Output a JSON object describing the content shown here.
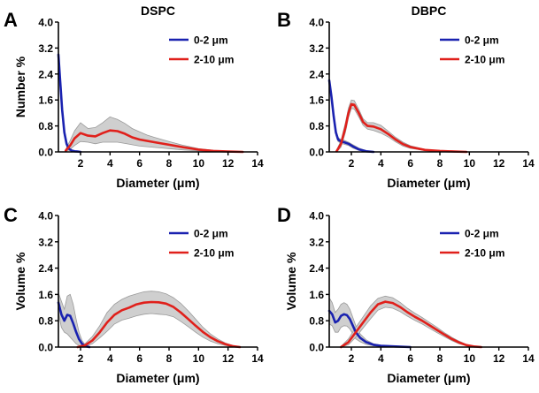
{
  "chart_data": [
    {
      "type": "line",
      "panel_label": "A",
      "title": "DSPC",
      "xlabel": "Diameter (μm)",
      "ylabel": "Number %",
      "xlim": [
        0.5,
        14
      ],
      "ylim": [
        0,
        4.0
      ],
      "xticks": [
        2,
        4,
        6,
        8,
        10,
        12,
        14
      ],
      "yticks": [
        0.0,
        0.8,
        1.6,
        2.4,
        3.2,
        4.0
      ],
      "ytick_labels": [
        "0.0",
        "0.8",
        "1.6",
        "2.4",
        "3.2",
        "4.0"
      ],
      "legend": "top-right",
      "series": [
        {
          "name": "0-2 μm",
          "color": "#1a22b0",
          "x": [
            0.5,
            0.6,
            0.75,
            0.9,
            1.05,
            1.2,
            1.4,
            1.6,
            1.8,
            2.0
          ],
          "y": [
            3.0,
            2.3,
            1.3,
            0.6,
            0.25,
            0.1,
            0.04,
            0.02,
            0.01,
            0.0
          ],
          "upper": [
            3.2,
            2.5,
            1.45,
            0.7,
            0.32,
            0.15,
            0.06,
            0.03,
            0.02,
            0.01
          ],
          "lower": [
            2.8,
            2.1,
            1.15,
            0.5,
            0.18,
            0.05,
            0.02,
            0.01,
            0.0,
            0.0
          ]
        },
        {
          "name": "2-10 μm",
          "color": "#e0201b",
          "x": [
            1.0,
            1.3,
            1.6,
            2.0,
            2.5,
            3.0,
            3.5,
            4.0,
            4.5,
            5.0,
            5.5,
            6.0,
            6.5,
            7.0,
            8.0,
            9.0,
            10.0,
            11.0,
            12.0,
            13.0
          ],
          "y": [
            0.04,
            0.2,
            0.42,
            0.58,
            0.5,
            0.48,
            0.58,
            0.66,
            0.64,
            0.56,
            0.45,
            0.38,
            0.34,
            0.3,
            0.22,
            0.14,
            0.07,
            0.03,
            0.01,
            0.0
          ],
          "upper": [
            0.08,
            0.35,
            0.65,
            0.9,
            0.72,
            0.75,
            0.9,
            1.08,
            1.0,
            0.88,
            0.72,
            0.62,
            0.52,
            0.45,
            0.32,
            0.2,
            0.1,
            0.05,
            0.02,
            0.01
          ],
          "lower": [
            0.01,
            0.08,
            0.2,
            0.32,
            0.3,
            0.25,
            0.3,
            0.3,
            0.3,
            0.26,
            0.22,
            0.18,
            0.16,
            0.14,
            0.1,
            0.06,
            0.03,
            0.01,
            0.0,
            0.0
          ]
        }
      ]
    },
    {
      "type": "line",
      "panel_label": "B",
      "title": "DBPC",
      "xlabel": "Diameter (μm)",
      "ylabel": "",
      "xlim": [
        0.5,
        14
      ],
      "ylim": [
        0,
        4.0
      ],
      "xticks": [
        2,
        4,
        6,
        8,
        10,
        12,
        14
      ],
      "yticks": [
        0.0,
        0.8,
        1.6,
        2.4,
        3.2,
        4.0
      ],
      "ytick_labels": [
        "0.0",
        "0.8",
        "1.6",
        "2.4",
        "3.2",
        "4.0"
      ],
      "legend": "top-right",
      "series": [
        {
          "name": "0-2 μm",
          "color": "#1a22b0",
          "x": [
            0.5,
            0.65,
            0.8,
            0.95,
            1.1,
            1.3,
            1.5,
            1.8,
            2.1,
            2.5,
            3.0,
            3.5
          ],
          "y": [
            2.2,
            1.7,
            1.1,
            0.6,
            0.38,
            0.32,
            0.3,
            0.25,
            0.17,
            0.08,
            0.02,
            0.0
          ],
          "upper": [
            2.3,
            1.8,
            1.2,
            0.68,
            0.44,
            0.38,
            0.36,
            0.3,
            0.22,
            0.12,
            0.04,
            0.01
          ],
          "lower": [
            2.1,
            1.6,
            1.0,
            0.52,
            0.32,
            0.26,
            0.24,
            0.2,
            0.12,
            0.05,
            0.01,
            0.0
          ]
        },
        {
          "name": "2-10 μm",
          "color": "#e0201b",
          "x": [
            1.0,
            1.3,
            1.6,
            1.8,
            2.0,
            2.2,
            2.5,
            2.8,
            3.1,
            3.5,
            4.0,
            4.5,
            5.0,
            5.5,
            6.0,
            7.0,
            8.0,
            9.0,
            9.8
          ],
          "y": [
            0.02,
            0.25,
            0.75,
            1.2,
            1.47,
            1.45,
            1.2,
            0.92,
            0.8,
            0.78,
            0.7,
            0.55,
            0.38,
            0.24,
            0.15,
            0.06,
            0.03,
            0.01,
            0.0
          ],
          "upper": [
            0.05,
            0.35,
            0.9,
            1.35,
            1.6,
            1.58,
            1.32,
            1.02,
            0.9,
            0.9,
            0.82,
            0.64,
            0.45,
            0.3,
            0.19,
            0.08,
            0.04,
            0.02,
            0.01
          ],
          "lower": [
            0.0,
            0.15,
            0.6,
            1.05,
            1.34,
            1.32,
            1.08,
            0.82,
            0.7,
            0.66,
            0.58,
            0.46,
            0.31,
            0.18,
            0.11,
            0.04,
            0.02,
            0.0,
            0.0
          ]
        }
      ]
    },
    {
      "type": "line",
      "panel_label": "C",
      "title": "",
      "xlabel": "Diameter (μm)",
      "ylabel": "Volume %",
      "xlim": [
        0.5,
        14
      ],
      "ylim": [
        0,
        4.0
      ],
      "xticks": [
        2,
        4,
        6,
        8,
        10,
        12,
        14
      ],
      "yticks": [
        0.0,
        0.8,
        1.6,
        2.4,
        3.2,
        4.0
      ],
      "ytick_labels": [
        "0.0",
        "0.8",
        "1.6",
        "2.4",
        "3.2",
        "4.0"
      ],
      "legend": "top-right",
      "series": [
        {
          "name": "0-2 μm",
          "color": "#1a22b0",
          "x": [
            0.5,
            0.7,
            0.9,
            1.1,
            1.3,
            1.5,
            1.7,
            1.9,
            2.1,
            2.3,
            2.6
          ],
          "y": [
            1.35,
            1.0,
            0.8,
            0.98,
            0.95,
            0.72,
            0.46,
            0.24,
            0.1,
            0.03,
            0.0
          ],
          "upper": [
            1.65,
            1.4,
            1.15,
            1.55,
            1.6,
            1.3,
            0.85,
            0.45,
            0.2,
            0.08,
            0.02
          ],
          "lower": [
            1.05,
            0.6,
            0.45,
            0.4,
            0.3,
            0.2,
            0.1,
            0.05,
            0.02,
            0.0,
            0.0
          ]
        },
        {
          "name": "2-10 μm",
          "color": "#e0201b",
          "x": [
            1.8,
            2.3,
            2.8,
            3.3,
            3.8,
            4.3,
            4.8,
            5.3,
            5.8,
            6.3,
            6.8,
            7.3,
            7.8,
            8.3,
            8.8,
            9.3,
            9.8,
            10.3,
            10.8,
            11.3,
            11.8,
            12.3,
            12.8
          ],
          "y": [
            0.0,
            0.05,
            0.2,
            0.45,
            0.75,
            0.98,
            1.12,
            1.2,
            1.3,
            1.35,
            1.37,
            1.36,
            1.32,
            1.22,
            1.05,
            0.85,
            0.65,
            0.46,
            0.3,
            0.18,
            0.09,
            0.03,
            0.0
          ],
          "upper": [
            0.02,
            0.1,
            0.32,
            0.65,
            1.05,
            1.3,
            1.45,
            1.55,
            1.62,
            1.68,
            1.7,
            1.68,
            1.62,
            1.5,
            1.33,
            1.1,
            0.85,
            0.6,
            0.4,
            0.25,
            0.13,
            0.05,
            0.01
          ],
          "lower": [
            0.0,
            0.02,
            0.1,
            0.28,
            0.48,
            0.7,
            0.82,
            0.88,
            0.95,
            1.0,
            1.02,
            1.0,
            0.98,
            0.92,
            0.78,
            0.62,
            0.45,
            0.3,
            0.18,
            0.1,
            0.05,
            0.01,
            0.0
          ]
        }
      ]
    },
    {
      "type": "line",
      "panel_label": "D",
      "title": "",
      "xlabel": "Diameter (μm)",
      "ylabel": "Volume %",
      "xlim": [
        0.5,
        14
      ],
      "ylim": [
        0,
        4.0
      ],
      "xticks": [
        2,
        4,
        6,
        8,
        10,
        12,
        14
      ],
      "yticks": [
        0.0,
        0.8,
        1.6,
        2.4,
        3.2,
        4.0
      ],
      "ytick_labels": [
        "0.0",
        "0.8",
        "1.6",
        "2.4",
        "3.2",
        "4.0"
      ],
      "legend": "top-right",
      "series": [
        {
          "name": "0-2 μm",
          "color": "#1a22b0",
          "x": [
            0.5,
            0.7,
            0.9,
            1.1,
            1.3,
            1.5,
            1.7,
            1.9,
            2.1,
            2.3,
            2.6,
            3.0,
            3.5,
            4.0,
            5.0,
            6.0
          ],
          "y": [
            1.1,
            1.0,
            0.75,
            0.8,
            0.95,
            1.0,
            0.97,
            0.85,
            0.65,
            0.45,
            0.28,
            0.15,
            0.07,
            0.04,
            0.02,
            0.0
          ],
          "upper": [
            1.5,
            1.35,
            1.05,
            1.15,
            1.3,
            1.35,
            1.3,
            1.15,
            0.9,
            0.65,
            0.4,
            0.22,
            0.1,
            0.06,
            0.03,
            0.01
          ],
          "lower": [
            0.7,
            0.65,
            0.45,
            0.45,
            0.6,
            0.65,
            0.64,
            0.55,
            0.4,
            0.25,
            0.16,
            0.08,
            0.04,
            0.02,
            0.01,
            0.0
          ]
        },
        {
          "name": "2-10 μm",
          "color": "#e0201b",
          "x": [
            1.3,
            1.8,
            2.3,
            2.8,
            3.3,
            3.8,
            4.3,
            4.8,
            5.3,
            5.8,
            6.3,
            6.8,
            7.3,
            7.8,
            8.3,
            8.8,
            9.3,
            9.8,
            10.3,
            10.8
          ],
          "y": [
            0.0,
            0.15,
            0.45,
            0.75,
            1.05,
            1.3,
            1.38,
            1.34,
            1.22,
            1.06,
            0.92,
            0.8,
            0.66,
            0.52,
            0.38,
            0.25,
            0.14,
            0.06,
            0.02,
            0.0
          ],
          "upper": [
            0.02,
            0.25,
            0.6,
            0.92,
            1.25,
            1.48,
            1.55,
            1.5,
            1.36,
            1.18,
            1.03,
            0.9,
            0.75,
            0.6,
            0.44,
            0.3,
            0.18,
            0.08,
            0.03,
            0.01
          ],
          "lower": [
            0.0,
            0.07,
            0.3,
            0.58,
            0.86,
            1.12,
            1.21,
            1.18,
            1.08,
            0.94,
            0.81,
            0.7,
            0.57,
            0.44,
            0.32,
            0.2,
            0.1,
            0.04,
            0.01,
            0.0
          ]
        }
      ]
    }
  ]
}
